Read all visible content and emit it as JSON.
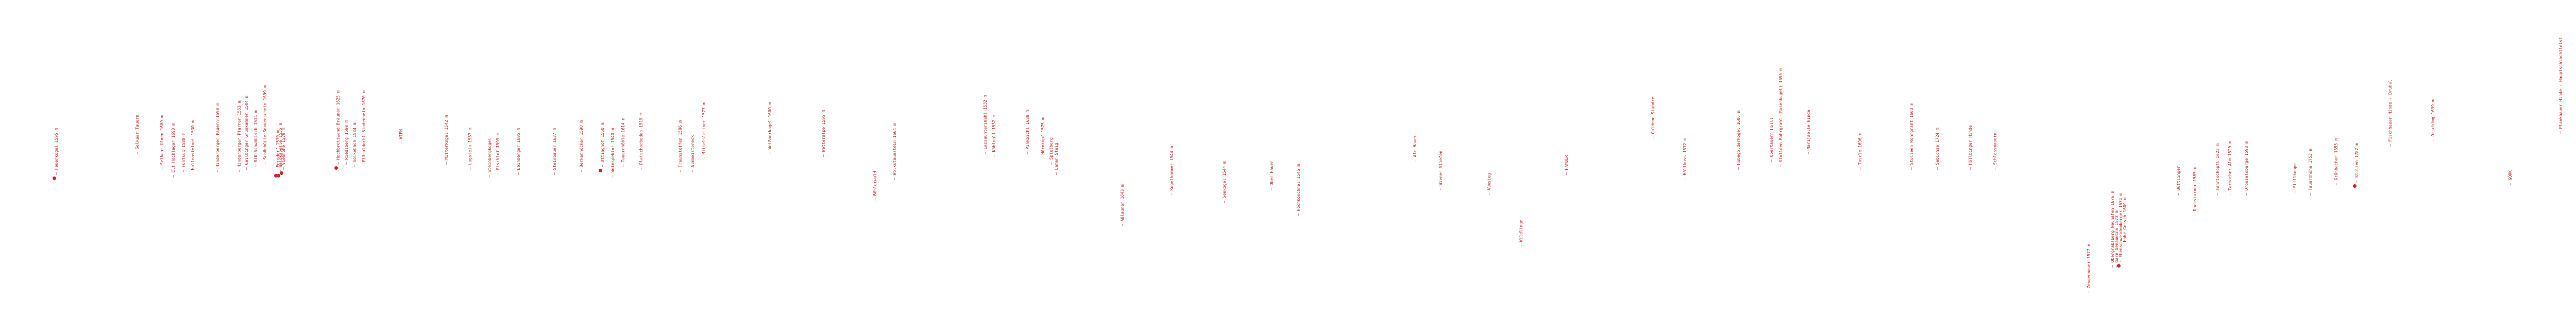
{
  "map": {
    "style": {
      "label_color": "#c62828",
      "background": "#ffffff"
    },
    "labels": [
      {
        "text": "Feuerkogel 1595 m",
        "marker": true
      },
      {
        "text": "Selkaar Tauern"
      },
      {
        "text": "Selkaar Ulmen 1600 m"
      },
      {
        "text": "Elt Hochlager 1690 m"
      },
      {
        "text": "Fünfsüß 1588 m"
      },
      {
        "text": "Hollensteinet 1530 m"
      },
      {
        "text": "Hinderberger Pauern 1690 m"
      },
      {
        "text": "Hinderberger Pfarrer 1553 m"
      },
      {
        "text": "Geilbinger Grünkammer 1504 m"
      },
      {
        "text": "Riß-Schwäbisch 1514 m"
      },
      {
        "text": "Schönhütte Sonnenschein 1699 m"
      },
      {
        "text": "Ferndorf 1530 m",
        "marker": true
      },
      {
        "text": "Waldkapelle 1535 m",
        "marker": true
      },
      {
        "text": "Viehhöhe 1579 m",
        "marker": true
      },
      {
        "text": "Hochbrettwand Bräuner 1625 m",
        "marker": true
      },
      {
        "text": "Riedlberg 1590 m"
      },
      {
        "text": "Sölkebach 1584 m"
      },
      {
        "text": "Fläcaldorbl Bindenheim 1670 m"
      },
      {
        "text": "WIEN"
      },
      {
        "text": "Mitterkogel 1542 m"
      },
      {
        "text": "Lugstein 1557 m"
      },
      {
        "text": "Steinbergkogel"
      },
      {
        "text": "Fischlof 1599 m"
      },
      {
        "text": "Beinberger 1605 m"
      },
      {
        "text": "Steinbauer 1637 m"
      },
      {
        "text": "Berkenhöcker 1598 m"
      },
      {
        "text": "Ottinghof 1560 m",
        "marker": true
      },
      {
        "text": "Weinspektor 1540 m"
      },
      {
        "text": "Tauernhöhle 1614 m"
      },
      {
        "text": "Platschorboden 1519 m"
      },
      {
        "text": "Traunstoffen 1586 m"
      },
      {
        "text": "Almmeistoreck"
      },
      {
        "text": "Mittelsleitner 1577 m"
      },
      {
        "text": "Weißnerkogel 1600 m"
      },
      {
        "text": "Wetteralpe 1595 m"
      },
      {
        "text": "Böhlerwald"
      },
      {
        "text": "Wolkstaunstein 1664 m"
      },
      {
        "text": "Lassauntersmahl 1532 m"
      },
      {
        "text": "Köhlnall 1532 m"
      },
      {
        "text": "Pinkbichl 1688 m"
      },
      {
        "text": "Hörnkopf 1575 m"
      },
      {
        "text": "Spielberg"
      },
      {
        "text": "Lamer Steig"
      },
      {
        "text": "Aßlauner 1643 m"
      },
      {
        "text": "Kogelkammer 1544 m"
      },
      {
        "text": "Seekogel 1544 m"
      },
      {
        "text": "Ober Hauer"
      },
      {
        "text": "Hochkoschnel 1546 m"
      },
      {
        "text": "Alm Hauer"
      },
      {
        "text": "Wiener Stiefen"
      },
      {
        "text": "Almsteg"
      },
      {
        "text": "Wildlinge"
      },
      {
        "text": "HAMBER"
      },
      {
        "text": "Goldene Standre"
      },
      {
        "text": "Höllkuss 1572 m"
      },
      {
        "text": "Hubegolderkogel 1606 m"
      },
      {
        "text": "Obertauern Hölll"
      },
      {
        "text": "Stolleen Rohrgraht (Rosenkugel) 1695 m"
      },
      {
        "text": "Marijaelle Hinde"
      },
      {
        "text": "Tuscle 1696 m"
      },
      {
        "text": "Stolleen Rohrgraht 1603 m"
      },
      {
        "text": "Sebichse 1724 m"
      },
      {
        "text": "Höllbinger Hinde"
      },
      {
        "text": "Schlossmauern"
      },
      {
        "text": "Zeugenmauer 1577 m"
      },
      {
        "text": "Obergrabsberg Neuhäfen 1676 m"
      },
      {
        "text": "Garn Genauwinn 1573 m"
      },
      {
        "text": "Ebenschweidemberger 1674 m",
        "marker": true
      },
      {
        "text": "Hohe Gessch 1609 m"
      },
      {
        "text": "Büttlinger"
      },
      {
        "text": "Dachsturner 1565 m"
      },
      {
        "text": "Fahrtschopfl 1623 m"
      },
      {
        "text": "Tarmacher Alm 1520 m"
      },
      {
        "text": "Drosselsberge 1598 m"
      },
      {
        "text": "Stillkoppe"
      },
      {
        "text": "Tauernhöhe 1753 m"
      },
      {
        "text": "Grünbacher 1655 m"
      },
      {
        "text": "Stulzen 1782 m",
        "marker": true
      },
      {
        "text": "Fischhauer Hinde - Druhal"
      },
      {
        "text": "Orschimg 1699 m"
      },
      {
        "text": "GÖRK"
      },
      {
        "text": "Plankhauer Hinde - Hauptschlachtleist"
      }
    ]
  }
}
